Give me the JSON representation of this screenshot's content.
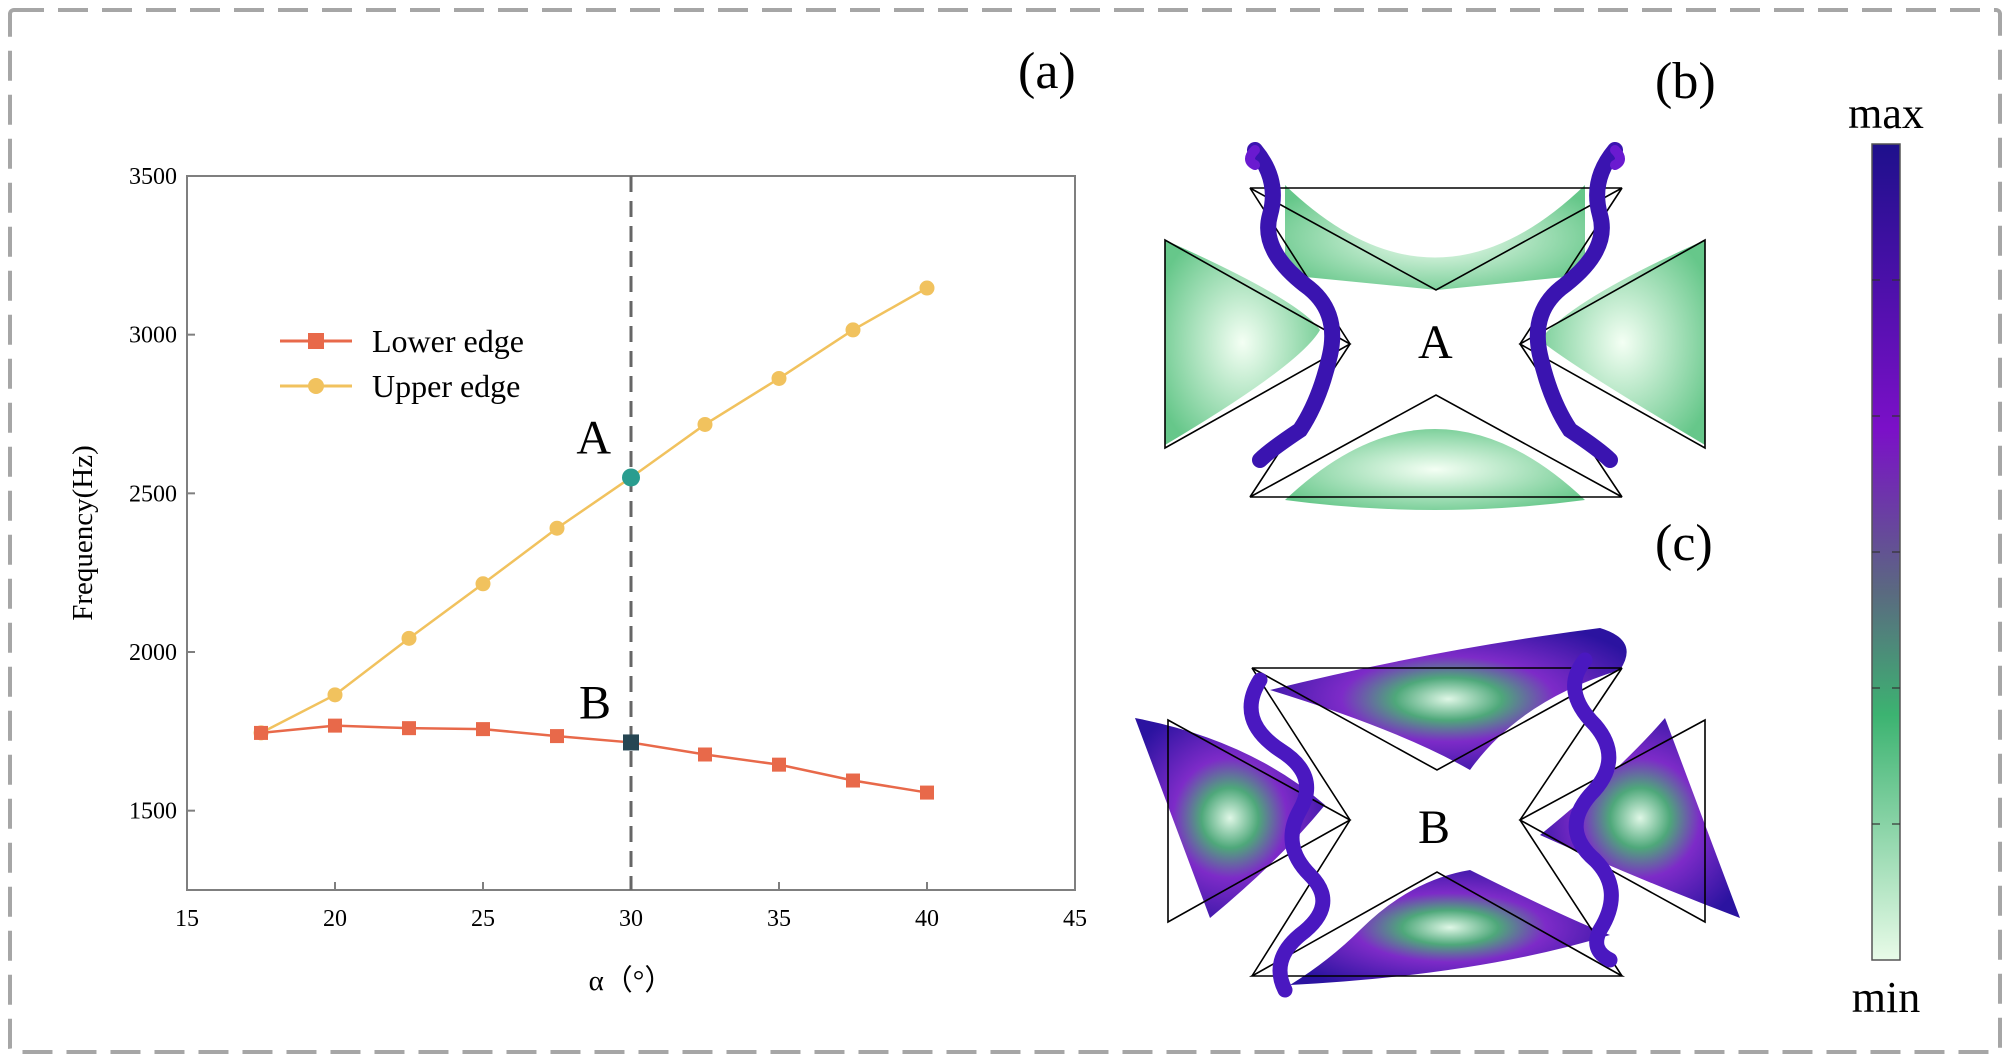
{
  "chart_data": {
    "type": "line",
    "xlabel": "α（°）",
    "ylabel": "Frequency(Hz)",
    "xlim": [
      15,
      45
    ],
    "ylim": [
      1250,
      3500
    ],
    "xticks": [
      15,
      20,
      25,
      30,
      35,
      40,
      45
    ],
    "yticks": [
      1500,
      2000,
      2500,
      3000,
      3500
    ],
    "legend_position": "upper-left",
    "series": [
      {
        "name": "Lower edge",
        "marker": "square",
        "color": "#e8694a",
        "x": [
          17.5,
          20,
          22.5,
          25,
          27.5,
          30,
          32.5,
          35,
          37.5,
          40
        ],
        "y": [
          1745,
          1768,
          1760,
          1757,
          1735,
          1715,
          1677,
          1645,
          1595,
          1557
        ]
      },
      {
        "name": "Upper edge",
        "marker": "circle",
        "color": "#f1c25e",
        "x": [
          17.5,
          20,
          22.5,
          25,
          27.5,
          30,
          32.5,
          35,
          37.5,
          40
        ],
        "y": [
          1745,
          1865,
          2043,
          2215,
          2390,
          2550,
          2717,
          2862,
          3015,
          3147
        ]
      }
    ],
    "reference_line": {
      "x": 30
    },
    "highlight_points": [
      {
        "label": "A",
        "x": 30,
        "y": 2550,
        "color": "#2a9d8f"
      },
      {
        "label": "B",
        "x": 30,
        "y": 1715,
        "color": "#264653"
      }
    ]
  },
  "panels": {
    "a": "(a)",
    "b": "(b)",
    "c": "(c)"
  },
  "mode_labels": {
    "a": "A",
    "b": "B"
  },
  "colorbar": {
    "max_label": "max",
    "min_label": "min",
    "colors": [
      "#e8fbe8",
      "#3cb371",
      "#5a4a8a",
      "#7b10c8",
      "#1e108c"
    ]
  }
}
